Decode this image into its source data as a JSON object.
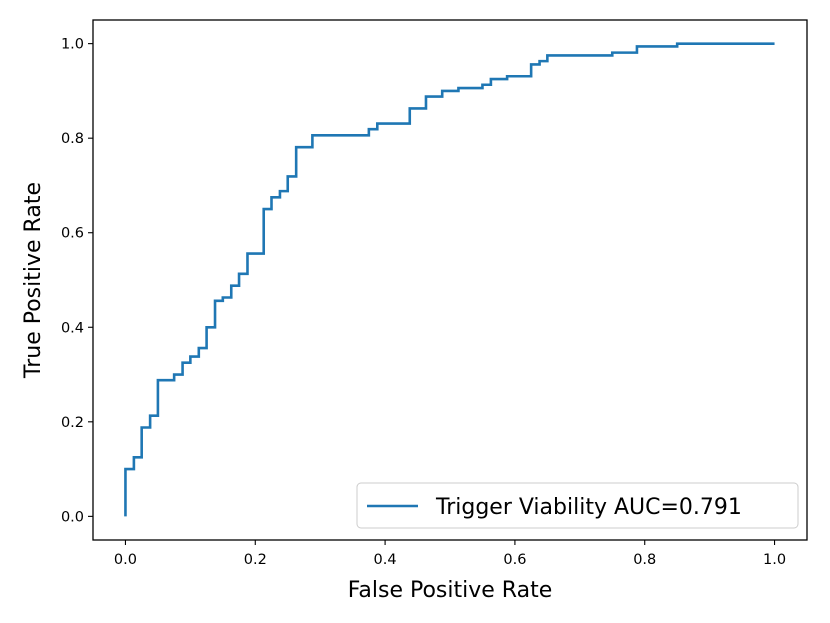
{
  "chart_data": {
    "type": "line",
    "xlabel": "False Positive Rate",
    "ylabel": "True Positive Rate",
    "xlim": [
      -0.05,
      1.05
    ],
    "ylim": [
      -0.05,
      1.05
    ],
    "xticks": [
      0.0,
      0.2,
      0.4,
      0.6,
      0.8,
      1.0
    ],
    "xtick_labels": [
      "0.0",
      "0.2",
      "0.4",
      "0.6",
      "0.8",
      "1.0"
    ],
    "yticks": [
      0.0,
      0.2,
      0.4,
      0.6,
      0.8,
      1.0
    ],
    "ytick_labels": [
      "0.0",
      "0.2",
      "0.4",
      "0.6",
      "0.8",
      "1.0"
    ],
    "grid": false,
    "legend_position": "lower-right",
    "colors": {
      "series": "#1f77b4",
      "axes": "#000000"
    },
    "series": [
      {
        "name": "Trigger Viability AUC=0.791",
        "x": [
          0.0,
          0.0,
          0.0,
          0.013,
          0.013,
          0.025,
          0.025,
          0.038,
          0.038,
          0.05,
          0.05,
          0.075,
          0.075,
          0.088,
          0.088,
          0.1,
          0.1,
          0.113,
          0.113,
          0.125,
          0.125,
          0.138,
          0.138,
          0.15,
          0.15,
          0.163,
          0.163,
          0.175,
          0.175,
          0.188,
          0.188,
          0.213,
          0.213,
          0.225,
          0.225,
          0.238,
          0.238,
          0.25,
          0.25,
          0.263,
          0.263,
          0.288,
          0.288,
          0.375,
          0.375,
          0.388,
          0.388,
          0.438,
          0.438,
          0.463,
          0.463,
          0.488,
          0.488,
          0.513,
          0.513,
          0.55,
          0.55,
          0.563,
          0.563,
          0.588,
          0.588,
          0.625,
          0.625,
          0.638,
          0.638,
          0.65,
          0.65,
          0.75,
          0.75,
          0.788,
          0.788,
          0.85,
          0.85,
          1.0
        ],
        "y": [
          0.0,
          0.0,
          0.1,
          0.1,
          0.125,
          0.125,
          0.188,
          0.188,
          0.213,
          0.213,
          0.288,
          0.288,
          0.3,
          0.3,
          0.325,
          0.325,
          0.338,
          0.338,
          0.356,
          0.356,
          0.4,
          0.4,
          0.456,
          0.456,
          0.463,
          0.463,
          0.488,
          0.488,
          0.513,
          0.513,
          0.556,
          0.556,
          0.65,
          0.65,
          0.675,
          0.675,
          0.688,
          0.688,
          0.719,
          0.719,
          0.781,
          0.781,
          0.806,
          0.806,
          0.819,
          0.819,
          0.831,
          0.831,
          0.863,
          0.863,
          0.888,
          0.888,
          0.9,
          0.9,
          0.906,
          0.906,
          0.913,
          0.913,
          0.925,
          0.925,
          0.931,
          0.931,
          0.956,
          0.956,
          0.963,
          0.963,
          0.975,
          0.975,
          0.981,
          0.981,
          0.994,
          0.994,
          1.0,
          1.0
        ]
      }
    ]
  }
}
